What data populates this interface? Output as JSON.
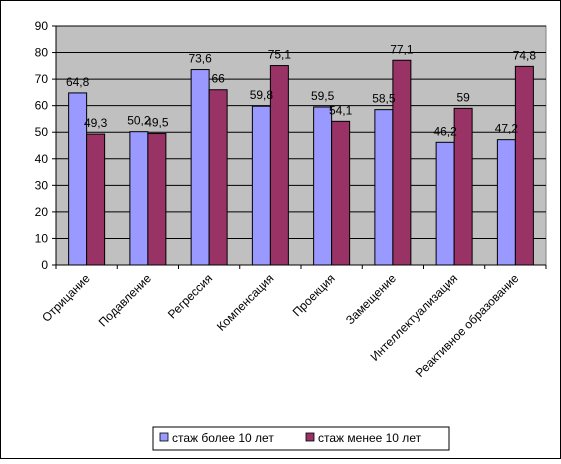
{
  "chart_data": {
    "type": "bar",
    "categories": [
      "Отрицание",
      "Подавление",
      "Регрессия",
      "Компенсация",
      "Проекция",
      "Замещение",
      "Интеллектуализация",
      "Реактивное образование"
    ],
    "series": [
      {
        "name": "стаж более 10 лет",
        "values": [
          64.8,
          50.2,
          73.6,
          59.8,
          59.5,
          58.5,
          46.2,
          47.2
        ],
        "labels": [
          "64,8",
          "50,2",
          "73,6",
          "59,8",
          "59,5",
          "58,5",
          "46,2",
          "47,2"
        ],
        "color": "#9999FF"
      },
      {
        "name": "стаж менее 10 лет",
        "values": [
          49.3,
          49.5,
          66,
          75.1,
          54.1,
          77.1,
          59,
          74.8
        ],
        "labels": [
          "49,3",
          "49,5",
          "66",
          "75,1",
          "54,1",
          "77,1",
          "59",
          "74,8"
        ],
        "color": "#993366"
      }
    ],
    "ylim": [
      0,
      90
    ],
    "yticks": [
      0,
      10,
      20,
      30,
      40,
      50,
      60,
      70,
      80,
      90
    ],
    "grid": true,
    "legend": "bottom",
    "plot_background": "#C0C0C0",
    "xlabel": "",
    "ylabel": ""
  }
}
